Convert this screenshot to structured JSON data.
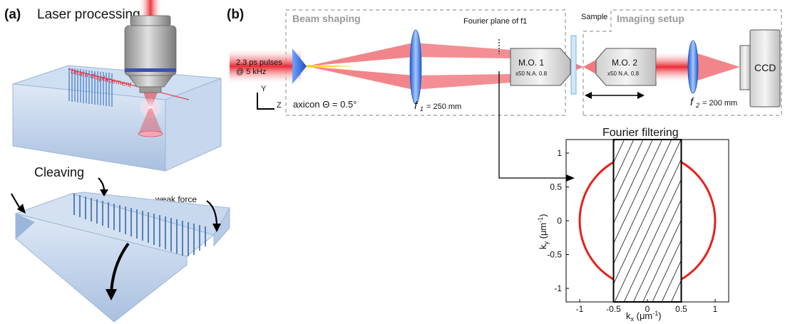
{
  "panel_a": {
    "label": "(a)",
    "title_processing": "Laser processing",
    "beam_displacement": "beam displacement",
    "title_cleaving": "Cleaving",
    "weak_force": "weak force"
  },
  "panel_b": {
    "label": "(b)",
    "box_beam_shaping": "Beam shaping",
    "box_imaging": "Imaging setup",
    "fourier_plane": "Fourier plane of f1",
    "sample": "Sample",
    "pulses_line1": "2.3 ps pulses",
    "pulses_line2": "@ 5 kHz",
    "axis_y": "Y",
    "axis_z": "Z",
    "axicon": "axicon Θ = 0.5°",
    "f1_sym": "f",
    "f1_sub": "1",
    "f1_val": "= 250 mm",
    "mo1_title": "M.O. 1",
    "mo1_spec": "x50 N.A. 0.8",
    "mo2_title": "M.O. 2",
    "mo2_spec": "x50 N.A. 0.8",
    "f2_sym": "f",
    "f2_sub": "2",
    "f2_val": "= 200 mm",
    "ccd": "CCD"
  },
  "chart_data": {
    "type": "scatter",
    "title": "Fourier filtering",
    "xlabel": "kx (μm-1)",
    "ylabel": "ky (μm-1)",
    "xlim": [
      -1.2,
      1.2
    ],
    "ylim": [
      -1.2,
      1.2
    ],
    "xticks": [
      "-1",
      "-0.5",
      "0",
      "0.5",
      "1"
    ],
    "yticks": [
      "1",
      "0.5",
      "0",
      "-0.5",
      "-1"
    ],
    "circle_radius": 1.0,
    "filter_band": [
      -0.5,
      0.5
    ],
    "colors": {
      "circle": "#e8201c",
      "band": "#000000"
    }
  },
  "colors": {
    "beam": "#e8202a",
    "lens": "#2a6fd8",
    "glass": "#b9cde6",
    "dash": "#9a9a9a"
  }
}
